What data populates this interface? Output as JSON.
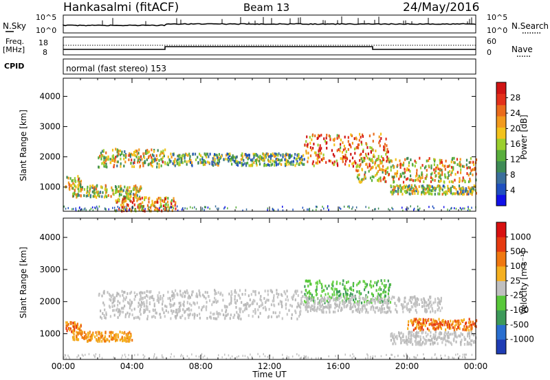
{
  "header": {
    "station": "Hankasalmi (fitACF)",
    "beam": "Beam 13",
    "date": "24/May/2016"
  },
  "top_panels": {
    "nsky_label": "N.Sky",
    "nsky_tick_top": "10^5",
    "nsky_tick_bottom": "10^0",
    "nsky_right_top": "10^5",
    "nsky_right_bottom": "10^0",
    "nsearch_label": "N.Search",
    "freq_label_1": "Freq.",
    "freq_label_2": "[MHz]",
    "freq_ticks": [
      "8",
      "18"
    ],
    "nave_label": "Nave",
    "nave_ticks": [
      "0",
      "60"
    ],
    "cpid_label": "CPID",
    "cpid_value": "normal (fast stereo) 153"
  },
  "chart_data": [
    {
      "type": "heatmap",
      "title": "",
      "xlabel": "Time UT",
      "ylabel": "Slant Range [km]",
      "x_ticks": [
        "00:00",
        "04:00",
        "08:00",
        "12:00",
        "16:00",
        "20:00",
        "00:00"
      ],
      "xlim": [
        0,
        24
      ],
      "y_ticks": [
        "1000",
        "2000",
        "3000",
        "4000"
      ],
      "ylim": [
        200,
        4600
      ],
      "colorbar": {
        "label": "Power [dB]",
        "ticks": [
          "4",
          "8",
          "12",
          "16",
          "20",
          "24",
          "28"
        ],
        "colors": [
          "#1010e8",
          "#1f4fbf",
          "#3b6f9c",
          "#3e8b55",
          "#59ae3c",
          "#9bcf2e",
          "#f2c21c",
          "#f29a1d",
          "#ea6b1c",
          "#e3301a",
          "#d01414"
        ]
      },
      "echo_bands": [
        {
          "t_start": 0.1,
          "t_end": 1.0,
          "range_low": 900,
          "range_high": 1400,
          "level": 0.6
        },
        {
          "t_start": 0.5,
          "t_end": 4.5,
          "range_low": 700,
          "range_high": 1100,
          "level": 0.5
        },
        {
          "t_start": 2.0,
          "t_end": 6.0,
          "range_low": 1700,
          "range_high": 2300,
          "level": 0.55
        },
        {
          "t_start": 3.0,
          "t_end": 6.5,
          "range_low": 250,
          "range_high": 700,
          "level": 0.7
        },
        {
          "t_start": 6.0,
          "t_end": 14.0,
          "range_low": 1750,
          "range_high": 2150,
          "level": 0.4
        },
        {
          "t_start": 14.0,
          "t_end": 19.0,
          "range_low": 1700,
          "range_high": 2800,
          "level": 0.75
        },
        {
          "t_start": 17.0,
          "t_end": 24.0,
          "range_low": 1200,
          "range_high": 2000,
          "level": 0.6
        },
        {
          "t_start": 19.0,
          "t_end": 24.0,
          "range_low": 800,
          "range_high": 1100,
          "level": 0.45
        }
      ]
    },
    {
      "type": "heatmap",
      "title": "",
      "xlabel": "Time UT",
      "ylabel": "Slant Range [km]",
      "x_ticks": [
        "00:00",
        "04:00",
        "08:00",
        "12:00",
        "16:00",
        "20:00",
        "00:00"
      ],
      "xlim": [
        0,
        24
      ],
      "y_ticks": [
        "1000",
        "2000",
        "3000",
        "4000"
      ],
      "ylim": [
        200,
        4600
      ],
      "colorbar": {
        "label": "Velocity [m s⁻¹]",
        "ticks": [
          "1000",
          "500",
          "100",
          "25",
          "-25",
          "-100",
          "-500",
          "-1000"
        ],
        "colors": [
          "#1e3cb4",
          "#2a6fd0",
          "#3d9a5a",
          "#58c83a",
          "#c0c0c0",
          "#f5b020",
          "#f07810",
          "#e63a10",
          "#d81010"
        ]
      },
      "echo_bands": [
        {
          "t_start": 0.1,
          "t_end": 1.0,
          "range_low": 1100,
          "range_high": 1400,
          "vel": "orange"
        },
        {
          "t_start": 0.5,
          "t_end": 4.0,
          "range_low": 800,
          "range_high": 1100,
          "vel": "yellow-orange"
        },
        {
          "t_start": 2.0,
          "t_end": 14.0,
          "range_low": 1500,
          "range_high": 2400,
          "vel": "grey"
        },
        {
          "t_start": 14.0,
          "t_end": 19.0,
          "range_low": 2000,
          "range_high": 2700,
          "vel": "green"
        },
        {
          "t_start": 14.0,
          "t_end": 22.0,
          "range_low": 1700,
          "range_high": 2200,
          "vel": "grey"
        },
        {
          "t_start": 20.0,
          "t_end": 24.0,
          "range_low": 1150,
          "range_high": 1500,
          "vel": "orange"
        },
        {
          "t_start": 19.0,
          "t_end": 24.0,
          "range_low": 700,
          "range_high": 1100,
          "vel": "grey"
        }
      ]
    }
  ]
}
